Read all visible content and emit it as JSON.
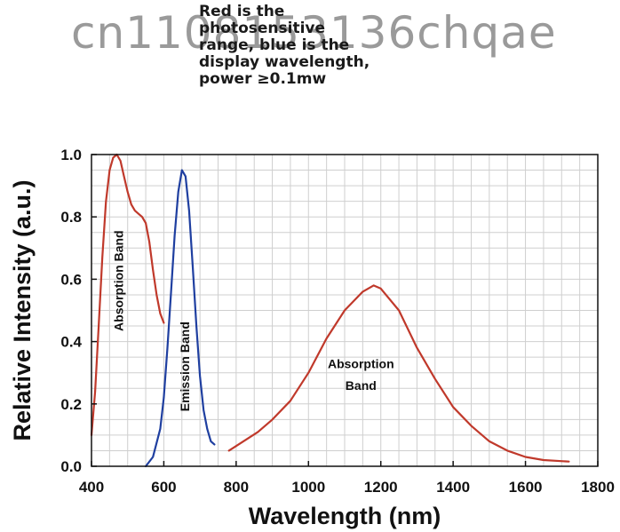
{
  "watermark": "cn1108153136chqae",
  "note": {
    "lines": [
      "Red is the",
      "photosensitive",
      "range, blue is the",
      "display wavelength,",
      "power ≥0.1mw"
    ]
  },
  "colors": {
    "absorption": "#c0392b",
    "emission": "#1f3fa0",
    "grid": "#cfcfcf",
    "axis": "#111111"
  },
  "chart_data": {
    "type": "line",
    "title": "",
    "xlabel": "Wavelength (nm)",
    "ylabel": "Relative Intensity (a.u.)",
    "xlim": [
      400,
      1800
    ],
    "ylim": [
      0,
      1
    ],
    "xticks": [
      400,
      600,
      800,
      1000,
      1200,
      1400,
      1600,
      1800
    ],
    "yticks": [
      0.0,
      0.2,
      0.4,
      0.6,
      0.8,
      1.0
    ],
    "ytick_labels": [
      "0.0",
      "0.2",
      "0.4",
      "0.6",
      "0.8",
      "1.0"
    ],
    "grid": true,
    "series": [
      {
        "color": "#c0392b",
        "x": [
          400,
          410,
          420,
          430,
          440,
          450,
          460,
          470,
          480,
          490,
          500,
          510,
          520,
          530,
          540,
          550,
          560,
          570,
          580,
          590,
          600
        ],
        "y": [
          0.1,
          0.24,
          0.45,
          0.67,
          0.85,
          0.95,
          0.99,
          1.0,
          0.98,
          0.93,
          0.88,
          0.84,
          0.82,
          0.81,
          0.8,
          0.78,
          0.72,
          0.63,
          0.55,
          0.49,
          0.46
        ]
      },
      {
        "color": "#1f3fa0",
        "x": [
          550,
          570,
          590,
          600,
          610,
          620,
          630,
          640,
          650,
          660,
          670,
          680,
          690,
          700,
          710,
          720,
          730,
          740
        ],
        "y": [
          0.0,
          0.03,
          0.12,
          0.22,
          0.38,
          0.56,
          0.74,
          0.88,
          0.95,
          0.93,
          0.82,
          0.64,
          0.45,
          0.29,
          0.18,
          0.12,
          0.08,
          0.07
        ]
      },
      {
        "color": "#c0392b",
        "x": [
          780,
          820,
          860,
          900,
          950,
          1000,
          1050,
          1100,
          1150,
          1180,
          1200,
          1250,
          1300,
          1350,
          1400,
          1450,
          1500,
          1550,
          1600,
          1650,
          1720
        ],
        "y": [
          0.05,
          0.08,
          0.11,
          0.15,
          0.21,
          0.3,
          0.41,
          0.5,
          0.56,
          0.58,
          0.57,
          0.5,
          0.38,
          0.28,
          0.19,
          0.13,
          0.08,
          0.05,
          0.03,
          0.02,
          0.015
        ]
      }
    ],
    "annotations": [
      {
        "text": "Absorption Band",
        "x": 487,
        "y": 0.595,
        "rotate": -90
      },
      {
        "text": "Emission Band",
        "x": 670,
        "y": 0.32,
        "rotate": -90
      },
      {
        "text": "Absorption",
        "x": 1145,
        "y": 0.315,
        "rotate": 0
      },
      {
        "text": "Band",
        "x": 1145,
        "y": 0.245,
        "rotate": 0
      }
    ]
  }
}
